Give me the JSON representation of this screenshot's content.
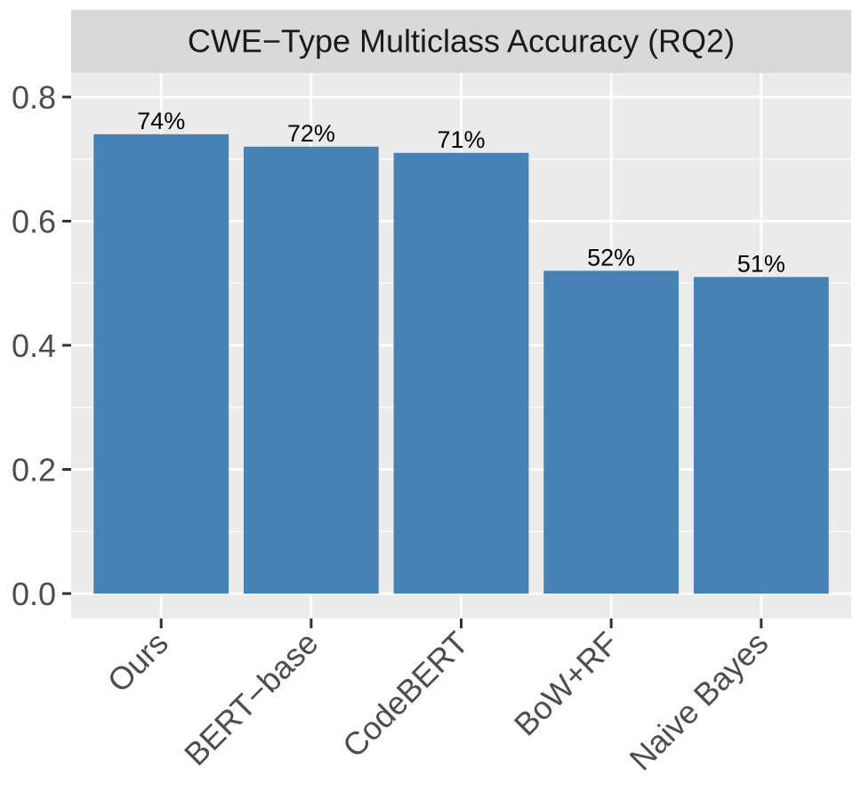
{
  "chart_data": {
    "type": "bar",
    "title": "CWE−Type Multiclass Accuracy (RQ2)",
    "xlabel": "",
    "ylabel": "",
    "categories": [
      "Ours",
      "BERT−base",
      "CodeBERT",
      "BoW+RF",
      "Naive Bayes"
    ],
    "values": [
      0.74,
      0.72,
      0.71,
      0.52,
      0.51
    ],
    "data_labels": [
      "74%",
      "72%",
      "71%",
      "52%",
      "51%"
    ],
    "ylim": [
      0,
      0.8
    ],
    "y_ticks": [
      0.0,
      0.2,
      0.4,
      0.6,
      0.8
    ],
    "y_tick_labels": [
      "0.0",
      "0.2",
      "0.4",
      "0.6",
      "0.8"
    ],
    "grid": true,
    "legend": "none",
    "x_tick_label_rotation": 45,
    "colors": {
      "bar": "#4682B4",
      "panel_background": "#EBEBEB",
      "strip_background": "#D9D9D9",
      "grid": "#FFFFFF"
    }
  }
}
